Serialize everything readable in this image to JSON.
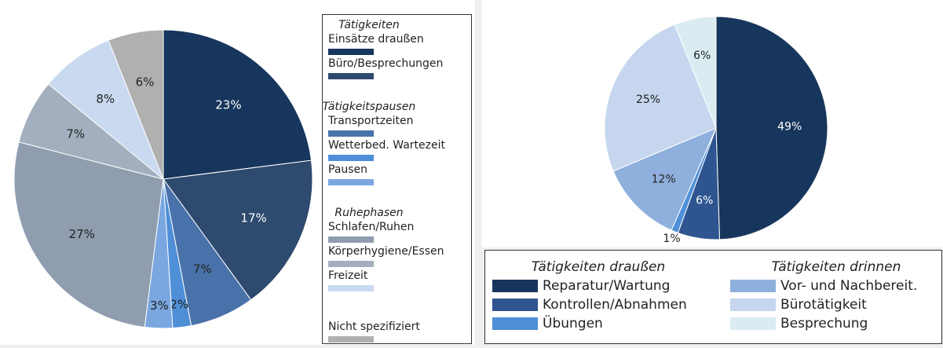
{
  "chart_data": [
    {
      "type": "pie",
      "groups": [
        {
          "title": "Tätigkeiten",
          "slices": [
            {
              "name": "Einsätze draußen",
              "value": 23,
              "label": "23%",
              "color": "#17365d"
            },
            {
              "name": "Büro/Besprechungen",
              "value": 17,
              "label": "17%",
              "color": "#2e4a6e"
            }
          ]
        },
        {
          "title": "Tätigkeitspausen",
          "slices": [
            {
              "name": "Transportzeiten",
              "value": 7,
              "label": "7%",
              "color": "#4a72aa"
            },
            {
              "name": "Wetterbed. Wartezeit",
              "value": 2,
              "label": "2%",
              "color": "#4f8fd8"
            },
            {
              "name": "Pausen",
              "value": 3,
              "label": "3%",
              "color": "#7aa7e0"
            }
          ]
        },
        {
          "title": "Ruhephasen",
          "slices": [
            {
              "name": "Schlafen/Ruhen",
              "value": 27,
              "label": "27%",
              "color": "#8f9daf"
            },
            {
              "name": "Körperhygiene/Essen",
              "value": 7,
              "label": "7%",
              "color": "#a3afbe"
            },
            {
              "name": "Freizeit",
              "value": 8,
              "label": "8%",
              "color": "#c9d9f0"
            }
          ]
        },
        {
          "slices": [
            {
              "name": "Nicht spezifiziert",
              "value": 6,
              "label": "6%",
              "color": "#b0b0b0"
            }
          ]
        }
      ]
    },
    {
      "type": "pie",
      "groups": [
        {
          "title": "Tätigkeiten draußen",
          "slices": [
            {
              "name": "Reparatur/Wartung",
              "value": 49,
              "label": "49%",
              "color": "#17365d"
            },
            {
              "name": "Kontrollen/Abnahmen",
              "value": 6,
              "label": "6%",
              "color": "#2e5590"
            },
            {
              "name": "Übungen",
              "value": 1,
              "label": "1%",
              "color": "#4f8fd8"
            }
          ]
        },
        {
          "title": "Tätigkeiten drinnen",
          "slices": [
            {
              "name": "Vor- und Nachbereit.",
              "value": 12,
              "label": "12%",
              "color": "#8fb0dc"
            },
            {
              "name": "Bürotätigkeit",
              "value": 25,
              "label": "25%",
              "color": "#c5d6ee"
            },
            {
              "name": "Besprechung",
              "value": 6,
              "label": "6%",
              "color": "#daecf2"
            }
          ]
        }
      ]
    }
  ]
}
